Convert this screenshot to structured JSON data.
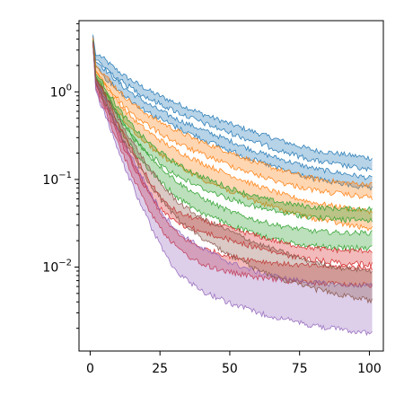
{
  "chart_data": {
    "type": "line",
    "title": "",
    "xlabel": "",
    "ylabel": "",
    "yscale": "log",
    "xlim": [
      -4,
      105
    ],
    "ylim": [
      0.0011,
      6.5
    ],
    "grid": false,
    "legend": "none",
    "x_ticks": [
      {
        "value": 0,
        "label": "0"
      },
      {
        "value": 25,
        "label": "25"
      },
      {
        "value": 50,
        "label": "50"
      },
      {
        "value": 75,
        "label": "75"
      },
      {
        "value": 100,
        "label": "100"
      }
    ],
    "y_ticks": [
      {
        "value": 1,
        "label": "10",
        "exp": "0"
      },
      {
        "value": 0.1,
        "label": "10",
        "exp": "−1"
      },
      {
        "value": 0.01,
        "label": "10",
        "exp": "−2"
      }
    ],
    "x": [
      1,
      2,
      3,
      5,
      8,
      12,
      17,
      22,
      27,
      32,
      40,
      50,
      60,
      70,
      80,
      90,
      101
    ],
    "series": [
      {
        "color": "#1f77b4",
        "bands": [
          {
            "upper": [
              4.5,
              2.6,
              2.6,
              2.3,
              1.9,
              1.5,
              1.2,
              0.97,
              0.82,
              0.7,
              0.55,
              0.42,
              0.33,
              0.26,
              0.21,
              0.19,
              0.17
            ],
            "lower": [
              4.3,
              2.3,
              2.3,
              2.0,
              1.65,
              1.3,
              1.03,
              0.83,
              0.7,
              0.59,
              0.46,
              0.35,
              0.27,
              0.21,
              0.17,
              0.15,
              0.13
            ]
          },
          {
            "upper": [
              4.3,
              2.2,
              2.1,
              1.8,
              1.45,
              1.1,
              0.85,
              0.67,
              0.55,
              0.46,
              0.36,
              0.27,
              0.2,
              0.16,
              0.13,
              0.115,
              0.1
            ],
            "lower": [
              4.1,
              1.95,
              1.85,
              1.55,
              1.25,
              0.95,
              0.72,
              0.57,
              0.47,
              0.39,
              0.3,
              0.22,
              0.165,
              0.13,
              0.105,
              0.092,
              0.08
            ]
          }
        ]
      },
      {
        "color": "#ff7f0e",
        "bands": [
          {
            "upper": [
              4.2,
              2.0,
              1.85,
              1.55,
              1.2,
              0.88,
              0.65,
              0.5,
              0.41,
              0.34,
              0.26,
              0.2,
              0.15,
              0.12,
              0.1,
              0.09,
              0.085
            ],
            "lower": [
              4.0,
              1.75,
              1.6,
              1.32,
              1.0,
              0.72,
              0.52,
              0.4,
              0.32,
              0.26,
              0.2,
              0.15,
              0.115,
              0.092,
              0.078,
              0.07,
              0.064
            ]
          },
          {
            "upper": [
              4.0,
              1.7,
              1.55,
              1.25,
              0.9,
              0.62,
              0.43,
              0.32,
              0.25,
              0.2,
              0.15,
              0.11,
              0.082,
              0.064,
              0.053,
              0.047,
              0.042
            ],
            "lower": [
              3.8,
              1.5,
              1.33,
              1.05,
              0.74,
              0.49,
              0.33,
              0.24,
              0.18,
              0.145,
              0.105,
              0.076,
              0.057,
              0.045,
              0.037,
              0.032,
              0.028
            ]
          }
        ]
      },
      {
        "color": "#2ca02c",
        "bands": [
          {
            "upper": [
              3.9,
              1.6,
              1.45,
              1.15,
              0.8,
              0.52,
              0.34,
              0.24,
              0.18,
              0.14,
              0.105,
              0.078,
              0.061,
              0.052,
              0.047,
              0.045,
              0.045
            ],
            "lower": [
              3.7,
              1.4,
              1.25,
              0.97,
              0.66,
              0.42,
              0.27,
              0.19,
              0.14,
              0.11,
              0.082,
              0.062,
              0.049,
              0.042,
              0.038,
              0.036,
              0.035
            ]
          },
          {
            "upper": [
              3.8,
              1.5,
              1.33,
              1.03,
              0.69,
              0.42,
              0.26,
              0.17,
              0.12,
              0.088,
              0.06,
              0.042,
              0.033,
              0.028,
              0.025,
              0.024,
              0.024
            ],
            "lower": [
              3.6,
              1.3,
              1.14,
              0.86,
              0.56,
              0.33,
              0.19,
              0.125,
              0.085,
              0.062,
              0.043,
              0.031,
              0.024,
              0.02,
              0.018,
              0.017,
              0.017
            ]
          }
        ]
      },
      {
        "color": "#d62728",
        "bands": [
          {
            "upper": [
              3.7,
              1.4,
              1.22,
              0.92,
              0.58,
              0.32,
              0.16,
              0.085,
              0.052,
              0.04,
              0.033,
              0.027,
              0.022,
              0.018,
              0.016,
              0.015,
              0.015
            ],
            "lower": [
              3.5,
              1.2,
              1.03,
              0.76,
              0.46,
              0.24,
              0.12,
              0.064,
              0.041,
              0.032,
              0.026,
              0.021,
              0.017,
              0.014,
              0.0125,
              0.0115,
              0.011
            ]
          },
          {
            "upper": [
              3.6,
              1.3,
              1.1,
              0.8,
              0.48,
              0.25,
              0.12,
              0.06,
              0.033,
              0.022,
              0.016,
              0.013,
              0.0115,
              0.0105,
              0.01,
              0.0098,
              0.0096
            ],
            "lower": [
              3.4,
              1.1,
              0.93,
              0.66,
              0.38,
              0.19,
              0.085,
              0.042,
              0.024,
              0.016,
              0.011,
              0.009,
              0.0078,
              0.0072,
              0.0068,
              0.0066,
              0.0064
            ]
          }
        ]
      },
      {
        "color": "#9467bd",
        "bands": [
          {
            "upper": [
              3.7,
              1.35,
              1.16,
              0.86,
              0.52,
              0.27,
              0.13,
              0.065,
              0.036,
              0.024,
              0.016,
              0.011,
              0.0085,
              0.0072,
              0.0065,
              0.0061,
              0.006
            ],
            "lower": [
              3.5,
              1.05,
              0.86,
              0.6,
              0.33,
              0.15,
              0.065,
              0.029,
              0.014,
              0.0085,
              0.0055,
              0.004,
              0.0031,
              0.0026,
              0.0022,
              0.002,
              0.0018
            ]
          }
        ]
      },
      {
        "color": "#8c564b",
        "bands": [
          {
            "upper": [
              3.8,
              1.45,
              1.28,
              0.98,
              0.64,
              0.38,
              0.21,
              0.12,
              0.075,
              0.052,
              0.035,
              0.025,
              0.018,
              0.014,
              0.011,
              0.0095,
              0.0088
            ],
            "lower": [
              3.6,
              1.25,
              1.08,
              0.81,
              0.51,
              0.29,
              0.155,
              0.085,
              0.052,
              0.035,
              0.022,
              0.014,
              0.0095,
              0.0072,
              0.0058,
              0.005,
              0.0042
            ]
          }
        ]
      }
    ]
  }
}
